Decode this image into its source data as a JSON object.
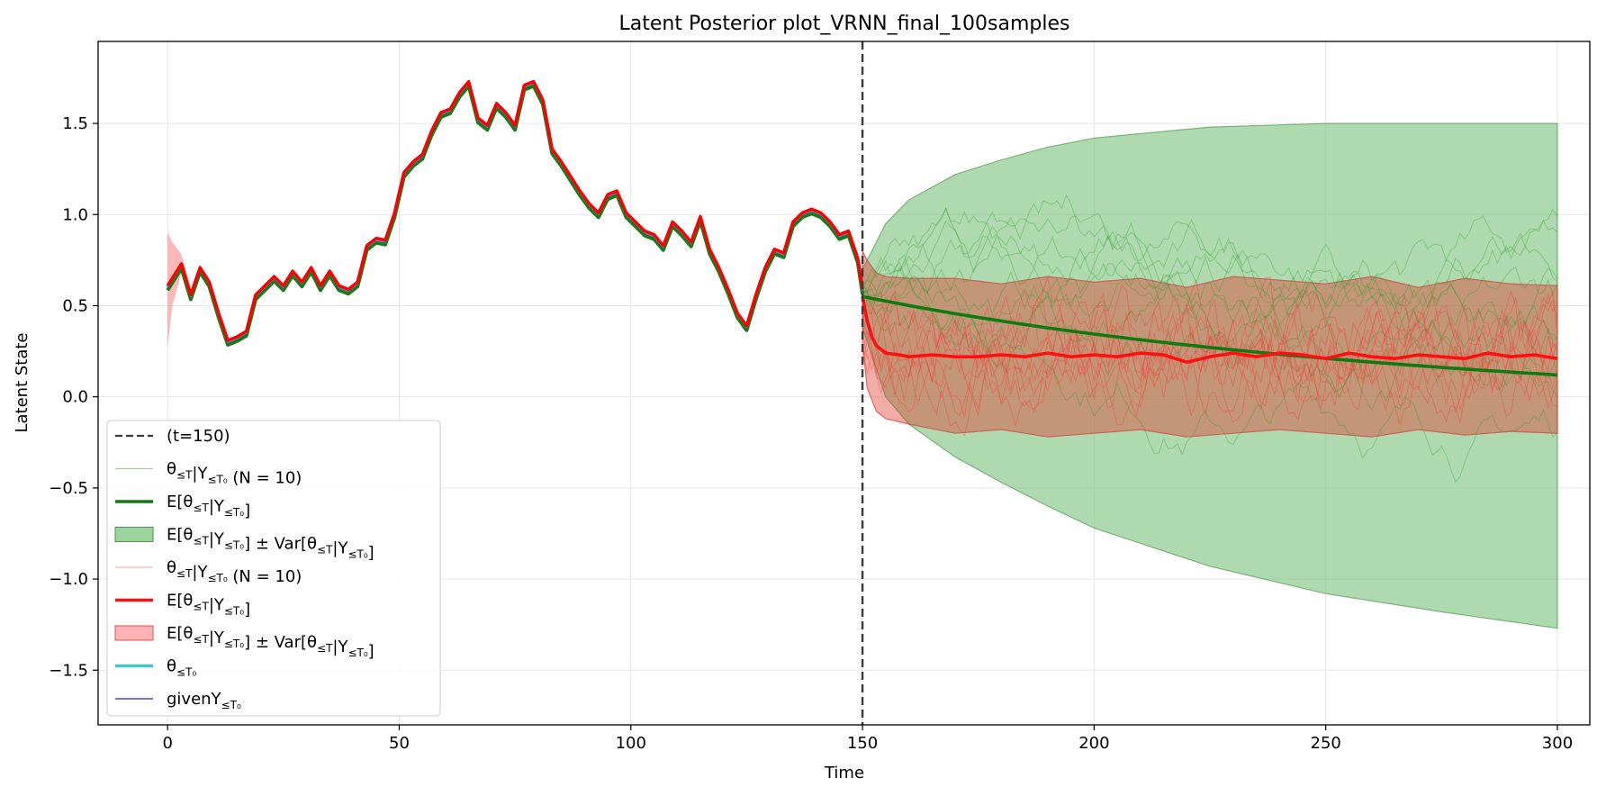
{
  "chart_data": {
    "type": "line",
    "title": "Latent Posterior plot_VRNN_final_100samples",
    "xlabel": "Time",
    "ylabel": "Latent State",
    "xlim": [
      -15,
      307
    ],
    "ylim": [
      -1.8,
      1.95
    ],
    "x_ticks": [
      0,
      50,
      100,
      150,
      200,
      250,
      300
    ],
    "y_ticks": [
      -1.5,
      -1.0,
      -0.5,
      0.0,
      0.5,
      1.0,
      1.5
    ],
    "x_tick_labels": [
      "0",
      "50",
      "100",
      "150",
      "200",
      "250",
      "300"
    ],
    "y_tick_labels": [
      "−1.5",
      "−1.0",
      "−0.5",
      "0.0",
      "0.5",
      "1.0",
      "1.5"
    ],
    "grid": true,
    "legend_placement": "lower-left",
    "vline": {
      "x": 150,
      "label": "(t=150)",
      "color": "#3a3a3a"
    },
    "observed": {
      "x": [
        0,
        3,
        5,
        7,
        9,
        11,
        13,
        15,
        17,
        19,
        21,
        23,
        25,
        27,
        29,
        31,
        33,
        35,
        37,
        39,
        41,
        43,
        45,
        47,
        49,
        51,
        53,
        55,
        57,
        59,
        61,
        63,
        65,
        67,
        69,
        71,
        73,
        75,
        77,
        79,
        81,
        83,
        85,
        87,
        89,
        91,
        93,
        95,
        97,
        99,
        101,
        103,
        105,
        107,
        109,
        111,
        113,
        115,
        117,
        119,
        121,
        123,
        125,
        127,
        129,
        131,
        133,
        135,
        137,
        139,
        141,
        143,
        145,
        147,
        149,
        150
      ],
      "values": [
        0.6,
        0.72,
        0.55,
        0.7,
        0.62,
        0.45,
        0.3,
        0.32,
        0.35,
        0.55,
        0.6,
        0.65,
        0.6,
        0.68,
        0.62,
        0.7,
        0.6,
        0.68,
        0.6,
        0.58,
        0.62,
        0.82,
        0.86,
        0.85,
        1.0,
        1.22,
        1.28,
        1.32,
        1.45,
        1.55,
        1.57,
        1.66,
        1.72,
        1.52,
        1.48,
        1.6,
        1.55,
        1.48,
        1.7,
        1.72,
        1.62,
        1.35,
        1.28,
        1.2,
        1.12,
        1.05,
        1.0,
        1.1,
        1.12,
        1.0,
        0.95,
        0.9,
        0.88,
        0.82,
        0.95,
        0.9,
        0.84,
        0.98,
        0.8,
        0.7,
        0.58,
        0.45,
        0.38,
        0.55,
        0.7,
        0.8,
        0.78,
        0.95,
        1.0,
        1.02,
        1.0,
        0.95,
        0.88,
        0.9,
        0.75,
        0.58
      ],
      "colors": {
        "truth": "#40c8c8",
        "given": "#7070f0",
        "green": "#1a7a1a",
        "red": "#ff0000"
      }
    },
    "series": [
      {
        "name": "E[θ",
        "color": "#0f7a0f",
        "x": [
          150,
          300
        ],
        "values": [
          0.55,
          0.12
        ]
      },
      {
        "name": "E[θ",
        "color": "#ff1010",
        "x": [
          150,
          151,
          152,
          153,
          155,
          158,
          160,
          165,
          170,
          175,
          180,
          185,
          190,
          195,
          200,
          205,
          210,
          215,
          220,
          225,
          230,
          235,
          240,
          245,
          250,
          255,
          260,
          265,
          270,
          275,
          280,
          285,
          290,
          295,
          300
        ],
        "values": [
          0.55,
          0.42,
          0.33,
          0.28,
          0.24,
          0.23,
          0.22,
          0.23,
          0.22,
          0.22,
          0.23,
          0.22,
          0.24,
          0.22,
          0.23,
          0.22,
          0.24,
          0.23,
          0.19,
          0.22,
          0.24,
          0.22,
          0.24,
          0.23,
          0.21,
          0.24,
          0.22,
          0.21,
          0.23,
          0.22,
          0.21,
          0.24,
          0.22,
          0.23,
          0.21
        ]
      }
    ],
    "green_band": {
      "x": [
        150,
        155,
        160,
        170,
        180,
        190,
        200,
        225,
        250,
        275,
        300
      ],
      "upper": [
        0.7,
        0.95,
        1.08,
        1.22,
        1.3,
        1.37,
        1.42,
        1.48,
        1.5,
        1.5,
        1.5
      ],
      "lower": [
        0.38,
        0.0,
        -0.15,
        -0.33,
        -0.47,
        -0.6,
        -0.72,
        -0.93,
        -1.08,
        -1.18,
        -1.27
      ]
    },
    "red_band": {
      "x": [
        150,
        151,
        153,
        155,
        160,
        170,
        180,
        190,
        200,
        210,
        220,
        230,
        240,
        250,
        260,
        270,
        280,
        290,
        300
      ],
      "upper": [
        0.8,
        0.75,
        0.68,
        0.66,
        0.65,
        0.65,
        0.62,
        0.66,
        0.63,
        0.65,
        0.6,
        0.66,
        0.64,
        0.62,
        0.66,
        0.6,
        0.65,
        0.62,
        0.61
      ],
      "lower": [
        0.3,
        0.05,
        -0.08,
        -0.12,
        -0.15,
        -0.2,
        -0.18,
        -0.22,
        -0.2,
        -0.18,
        -0.22,
        -0.2,
        -0.18,
        -0.2,
        -0.22,
        -0.18,
        -0.21,
        -0.19,
        -0.2
      ]
    },
    "legend": [
      {
        "label": "(t=150)",
        "kind": "dashed",
        "color": "#3a3a3a"
      },
      {
        "label": "θ",
        "sub1": "≤T",
        "mid": "|Y",
        "sub2": "≤T₀",
        "tail": " (N = 10)",
        "kind": "thinline",
        "color": "#9ed49e"
      },
      {
        "label": "E[θ",
        "sub1": "≤T",
        "mid": "|Y",
        "sub2": "≤T₀",
        "tail": "]",
        "kind": "line",
        "color": "#0f7a0f"
      },
      {
        "label": "E[θ",
        "sub1": "≤T",
        "mid": "|Y",
        "sub2": "≤T₀",
        "tail": "] ± Var[θ",
        "sub3": "≤T",
        "mid2": "|Y",
        "sub4": "≤T₀",
        "tail2": "]",
        "kind": "patch",
        "color": "#7cc47c",
        "edge": "#4a9a4a"
      },
      {
        "label": "θ",
        "sub1": "≤T",
        "mid": "|Y",
        "sub2": "≤T₀",
        "tail": " (N = 10)",
        "kind": "thinline",
        "color": "#ffb0b0"
      },
      {
        "label": "E[θ",
        "sub1": "≤T",
        "mid": "|Y",
        "sub2": "≤T₀",
        "tail": "]",
        "kind": "line",
        "color": "#ff1010"
      },
      {
        "label": "E[θ",
        "sub1": "≤T",
        "mid": "|Y",
        "sub2": "≤T₀",
        "tail": "] ± Var[θ",
        "sub3": "≤T",
        "mid2": "|Y",
        "sub4": "≤T₀",
        "tail2": "]",
        "kind": "patch",
        "color": "#ff9a9a",
        "edge": "#e05050"
      },
      {
        "label": "θ",
        "sub1": "≤T₀",
        "kind": "line",
        "color": "#40c8c8"
      },
      {
        "label": "givenY",
        "sub1": "≤T₀",
        "kind": "thinline2",
        "color": "#7070f0"
      }
    ]
  }
}
